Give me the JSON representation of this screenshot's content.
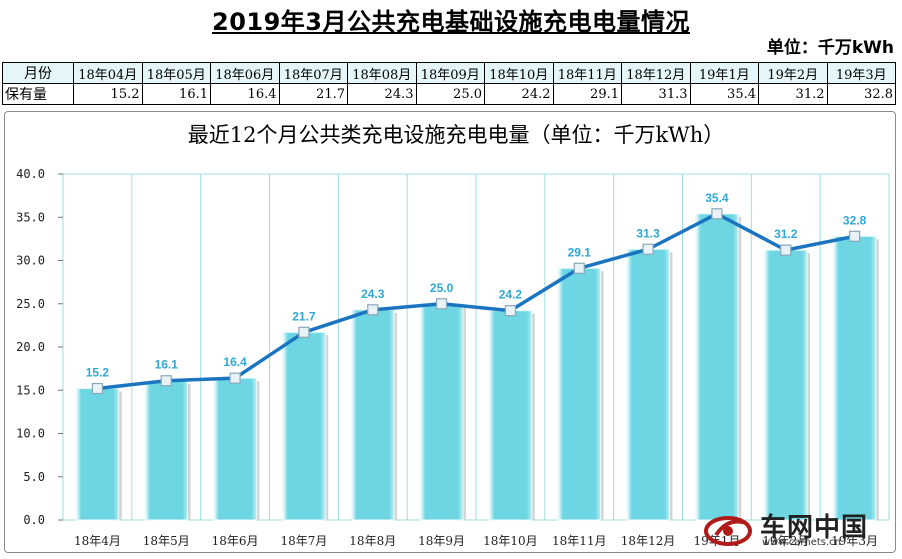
{
  "page": {
    "title": "2019年3月公共充电基础设施充电电量情况",
    "unit": "单位：千万kWh"
  },
  "table": {
    "row1_head": "月份",
    "row2_head": "保有量",
    "months": [
      "18年04月",
      "18年05月",
      "18年06月",
      "18年07月",
      "18年08月",
      "18年09月",
      "18年10月",
      "18年11月",
      "18年12月",
      "19年1月",
      "19年2月",
      "19年3月"
    ],
    "values": [
      "15.2",
      "16.1",
      "16.4",
      "21.7",
      "24.3",
      "25.0",
      "24.2",
      "29.1",
      "31.3",
      "35.4",
      "31.2",
      "32.8"
    ]
  },
  "chart_data": {
    "type": "bar",
    "title": "最近12个月公共类充电设施充电电量（单位：千万kWh）",
    "categories": [
      "18年4月",
      "18年5月",
      "18年6月",
      "18年7月",
      "18年8月",
      "18年9月",
      "18年10月",
      "18年11月",
      "18年12月",
      "19年1月",
      "19年2月",
      "19年3月"
    ],
    "values": [
      15.2,
      16.1,
      16.4,
      21.7,
      24.3,
      25.0,
      24.2,
      29.1,
      31.3,
      35.4,
      31.2,
      32.8
    ],
    "data_labels": [
      "15.2",
      "16.1",
      "16.4",
      "21.7",
      "24.3",
      "25.0",
      "24.2",
      "29.1",
      "31.3",
      "35.4",
      "31.2",
      "32.8"
    ],
    "overlay": "line",
    "ylim": [
      0,
      40
    ],
    "yticks": [
      "0.0",
      "5.0",
      "10.0",
      "15.0",
      "20.0",
      "25.0",
      "30.0",
      "35.0",
      "40.0"
    ],
    "grid": "vertical",
    "xlabel": "",
    "ylabel": "",
    "colors": {
      "bar": "#6dd6e2",
      "line": "#1a74c0",
      "label": "#2fa8d5",
      "grid": "#9fdcdc"
    }
  },
  "watermark": {
    "text": "车网中国",
    "url": "www.carnets.cn"
  }
}
